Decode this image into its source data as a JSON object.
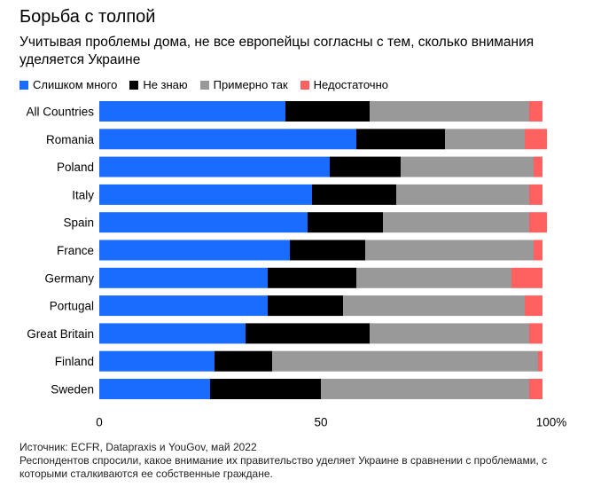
{
  "title": "Борьба с толпой",
  "subtitle": "Учитывая проблемы дома, не все европейцы согласны с тем, сколько внимания уделяется Украине",
  "source": "Источник: ECFR, Datapraxis и YouGov, май 2022",
  "note": "Респондентов спросили, какое внимание их правительство уделяет Украине в сравнении с проблемами, с которыми сталкиваются ее собственные граждане.",
  "chart_data": {
    "type": "bar",
    "orientation": "horizontal",
    "stacked": true,
    "title": "Борьба с толпой",
    "subtitle": "Учитывая проблемы дома, не все европейцы согласны с тем, сколько внимания уделяется Украине",
    "xlabel": "",
    "ylabel": "",
    "xlim": [
      0,
      100
    ],
    "x_ticks": [
      {
        "value": 0,
        "label": "0"
      },
      {
        "value": 50,
        "label": "50"
      },
      {
        "value": 100,
        "label": "100%"
      }
    ],
    "legend_position": "top-left",
    "grid": false,
    "categories": [
      "All Countries",
      "Romania",
      "Poland",
      "Italy",
      "Spain",
      "France",
      "Germany",
      "Portugal",
      "Great Britain",
      "Finland",
      "Sweden"
    ],
    "series": [
      {
        "name": "Слишком много",
        "color": "#1a6cff",
        "values": [
          42,
          58,
          52,
          48,
          47,
          43,
          38,
          38,
          33,
          26,
          25
        ]
      },
      {
        "name": "Не знаю",
        "color": "#000000",
        "values": [
          19,
          20,
          16,
          19,
          17,
          17,
          20,
          17,
          28,
          13,
          25
        ]
      },
      {
        "name": "Примерно так",
        "color": "#999999",
        "values": [
          36,
          18,
          30,
          30,
          33,
          38,
          35,
          41,
          36,
          60,
          47
        ]
      },
      {
        "name": "Недостаточно",
        "color": "#ff6060",
        "values": [
          3,
          5,
          2,
          3,
          4,
          2,
          7,
          4,
          3,
          1,
          3
        ]
      }
    ]
  }
}
